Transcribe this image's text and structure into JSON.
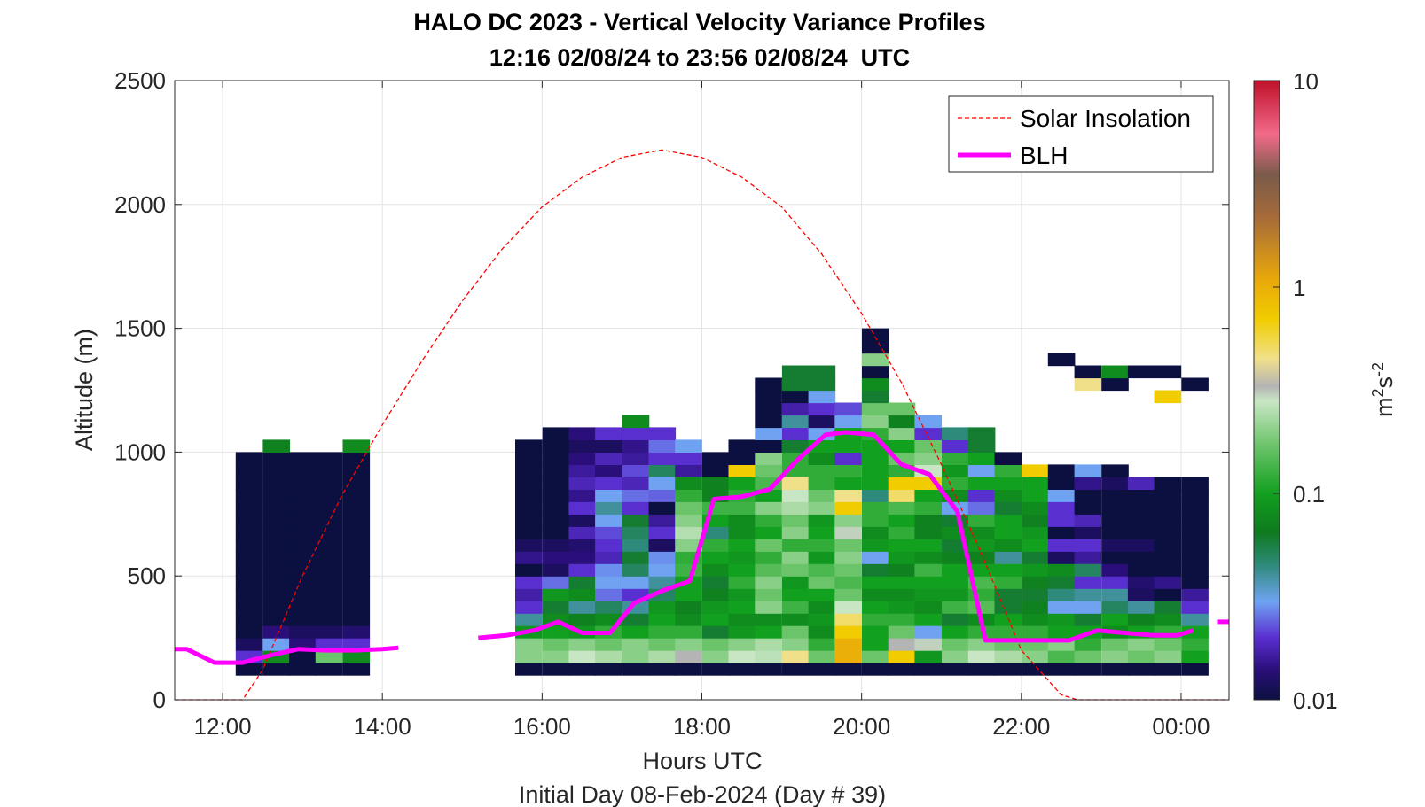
{
  "chart_data": {
    "type": "heatmap",
    "title": "HALO DC 2023 - Vertical Velocity Variance Profiles",
    "subtitle": "12:16 02/08/24 to 23:56 02/08/24  UTC",
    "xlabel": "Hours UTC",
    "ylabel": "Altitude (m)",
    "footer": "Initial Day 08-Feb-2024 (Day # 39)",
    "xlim_hours": [
      11.4,
      24.6
    ],
    "ylim": [
      0,
      2500
    ],
    "x_ticks": [
      {
        "value": 12,
        "label": "12:00"
      },
      {
        "value": 14,
        "label": "14:00"
      },
      {
        "value": 16,
        "label": "16:00"
      },
      {
        "value": 18,
        "label": "18:00"
      },
      {
        "value": 20,
        "label": "20:00"
      },
      {
        "value": 22,
        "label": "22:00"
      },
      {
        "value": 24,
        "label": "00:00"
      }
    ],
    "y_ticks": [
      {
        "value": 0,
        "label": "0"
      },
      {
        "value": 500,
        "label": "500"
      },
      {
        "value": 1000,
        "label": "1000"
      },
      {
        "value": 1500,
        "label": "1500"
      },
      {
        "value": 2000,
        "label": "2000"
      },
      {
        "value": 2500,
        "label": "2500"
      }
    ],
    "grid": true,
    "colorbar": {
      "scale": "log",
      "range": [
        0.01,
        10
      ],
      "ticks": [
        {
          "value": 0.01,
          "label": "0.01"
        },
        {
          "value": 0.1,
          "label": "0.1"
        },
        {
          "value": 1,
          "label": "1"
        },
        {
          "value": 10,
          "label": "10"
        }
      ],
      "unit_base": "m",
      "unit_sup1": "2",
      "unit_mid": "s",
      "unit_sup2": "-2",
      "stops": [
        {
          "value": 0.01,
          "color": "#0b1040"
        },
        {
          "value": 0.014,
          "color": "#2a0f7a"
        },
        {
          "value": 0.02,
          "color": "#5a2fd0"
        },
        {
          "value": 0.03,
          "color": "#6fa3f2"
        },
        {
          "value": 0.045,
          "color": "#2e8a7a"
        },
        {
          "value": 0.065,
          "color": "#0e7a1e"
        },
        {
          "value": 0.1,
          "color": "#12a01f"
        },
        {
          "value": 0.17,
          "color": "#6cc46a"
        },
        {
          "value": 0.28,
          "color": "#c8e6c4"
        },
        {
          "value": 0.33,
          "color": "#b4b4b4"
        },
        {
          "value": 0.45,
          "color": "#f1e08a"
        },
        {
          "value": 0.7,
          "color": "#f1cc00"
        },
        {
          "value": 1.1,
          "color": "#e8a70a"
        },
        {
          "value": 2.2,
          "color": "#a56a3a"
        },
        {
          "value": 3.5,
          "color": "#7a5b4a"
        },
        {
          "value": 5.5,
          "color": "#f26a8a"
        },
        {
          "value": 10,
          "color": "#c0102a"
        }
      ]
    },
    "legend": {
      "position": "top-right",
      "entries": [
        {
          "name": "Solar Insolation",
          "color": "#ff0000",
          "style": "dashed"
        },
        {
          "name": "BLH",
          "color": "#ff00ff",
          "style": "solid"
        }
      ]
    },
    "heatmap_bin_width_hours": 0.333,
    "heatmap_bin_height_m": 50,
    "variance_columns": [
      {
        "t": 12.33,
        "ybase": 100,
        "values": [
          0.01,
          0.02,
          0.012,
          0.01,
          0.01,
          0.01,
          0.01,
          0.01,
          0.01,
          0.01,
          0.01,
          0.01,
          0.01,
          0.01,
          0.01,
          0.01,
          0.01,
          0.01
        ]
      },
      {
        "t": 12.67,
        "ybase": 100,
        "values": [
          0.01,
          0.08,
          0.03,
          0.014,
          0.01,
          0.01,
          0.01,
          0.01,
          0.01,
          0.01,
          0.01,
          0.01,
          0.01,
          0.01,
          0.01,
          0.01,
          0.01,
          0.01,
          0.07
        ]
      },
      {
        "t": 13.0,
        "ybase": 100,
        "values": [
          0.01,
          0.01,
          0.014,
          0.012,
          0.01,
          0.01,
          0.01,
          0.01,
          0.01,
          0.01,
          0.01,
          0.01,
          0.01,
          0.01,
          0.01,
          0.01,
          0.01,
          0.01
        ]
      },
      {
        "t": 13.33,
        "ybase": 100,
        "values": [
          0.01,
          0.17,
          0.02,
          0.012,
          0.01,
          0.01,
          0.01,
          0.01,
          0.01,
          0.01,
          0.01,
          0.01,
          0.01,
          0.01,
          0.01,
          0.01,
          0.01,
          0.01
        ]
      },
      {
        "t": 13.67,
        "ybase": 100,
        "values": [
          0.01,
          0.08,
          0.02,
          0.013,
          0.01,
          0.01,
          0.01,
          0.01,
          0.01,
          0.01,
          0.01,
          0.01,
          0.01,
          0.01,
          0.01,
          0.01,
          0.01,
          0.01,
          0.08
        ]
      },
      {
        "t": 15.83,
        "ybase": 100,
        "values": [
          0.01,
          0.2,
          0.2,
          0.09,
          0.04,
          0.02,
          0.017,
          0.02,
          0.01,
          0.015,
          0.012,
          0.01,
          0.01,
          0.01,
          0.01,
          0.01,
          0.01,
          0.01,
          0.01
        ]
      },
      {
        "t": 16.17,
        "ybase": 100,
        "values": [
          0.01,
          0.2,
          0.17,
          0.1,
          0.08,
          0.06,
          0.09,
          0.025,
          0.012,
          0.014,
          0.012,
          0.01,
          0.01,
          0.01,
          0.01,
          0.01,
          0.01,
          0.01,
          0.01,
          0.01
        ]
      },
      {
        "t": 16.5,
        "ybase": 100,
        "values": [
          0.01,
          0.28,
          0.2,
          0.09,
          0.07,
          0.04,
          0.08,
          0.06,
          0.02,
          0.014,
          0.013,
          0.018,
          0.012,
          0.02,
          0.015,
          0.018,
          0.016,
          0.014,
          0.012,
          0.014
        ]
      },
      {
        "t": 16.83,
        "ybase": 100,
        "values": [
          0.01,
          0.24,
          0.17,
          0.12,
          0.08,
          0.05,
          0.025,
          0.03,
          0.028,
          0.018,
          0.02,
          0.022,
          0.03,
          0.04,
          0.03,
          0.02,
          0.014,
          0.018,
          0.012,
          0.02
        ]
      },
      {
        "t": 17.17,
        "ybase": 100,
        "values": [
          0.01,
          0.2,
          0.2,
          0.1,
          0.06,
          0.04,
          0.02,
          0.03,
          0.05,
          0.06,
          0.045,
          0.05,
          0.06,
          0.02,
          0.025,
          0.018,
          0.022,
          0.016,
          0.015,
          0.02,
          0.08
        ]
      },
      {
        "t": 17.5,
        "ybase": 100,
        "values": [
          0.01,
          0.24,
          0.17,
          0.12,
          0.1,
          0.09,
          0.05,
          0.04,
          0.03,
          0.028,
          0.012,
          0.02,
          0.016,
          0.01,
          0.024,
          0.03,
          0.05,
          0.02,
          0.025,
          0.02
        ]
      },
      {
        "t": 17.83,
        "ybase": 100,
        "values": [
          0.01,
          0.33,
          0.2,
          0.12,
          0.08,
          0.07,
          0.1,
          0.1,
          0.13,
          0.12,
          0.2,
          0.25,
          0.2,
          0.17,
          0.12,
          0.08,
          0.016,
          0.02,
          0.03
        ]
      },
      {
        "t": 18.17,
        "ybase": 100,
        "values": [
          0.01,
          0.2,
          0.17,
          0.06,
          0.1,
          0.09,
          0.07,
          0.06,
          0.08,
          0.1,
          0.12,
          0.045,
          0.1,
          0.13,
          0.07,
          0.07,
          0.01,
          0.01
        ]
      },
      {
        "t": 18.5,
        "ybase": 100,
        "values": [
          0.01,
          0.28,
          0.2,
          0.09,
          0.08,
          0.1,
          0.09,
          0.12,
          0.1,
          0.09,
          0.1,
          0.08,
          0.08,
          0.13,
          0.12,
          0.1,
          0.7,
          0.01,
          0.01
        ]
      },
      {
        "t": 18.83,
        "ybase": 100,
        "values": [
          0.01,
          0.26,
          0.24,
          0.1,
          0.08,
          0.2,
          0.17,
          0.2,
          0.15,
          0.12,
          0.17,
          0.1,
          0.12,
          0.2,
          0.1,
          0.14,
          0.17,
          0.2,
          0.01,
          0.03,
          0.01,
          0.01,
          0.01,
          0.01
        ]
      },
      {
        "t": 19.17,
        "ybase": 100,
        "values": [
          0.01,
          0.45,
          0.2,
          0.17,
          0.08,
          0.13,
          0.1,
          0.09,
          0.17,
          0.2,
          0.12,
          0.2,
          0.17,
          0.24,
          0.28,
          0.45,
          0.12,
          0.12,
          0.06,
          0.02,
          0.04,
          0.017,
          0.01,
          0.06,
          0.06
        ]
      },
      {
        "t": 19.5,
        "ybase": 100,
        "values": [
          0.01,
          0.17,
          0.12,
          0.08,
          0.09,
          0.08,
          0.1,
          0.17,
          0.14,
          0.09,
          0.12,
          0.1,
          0.09,
          0.2,
          0.17,
          0.12,
          0.12,
          0.08,
          0.1,
          0.03,
          0.012,
          0.02,
          0.03,
          0.06,
          0.06
        ]
      },
      {
        "t": 19.83,
        "ybase": 100,
        "values": [
          0.01,
          1.0,
          1.0,
          0.7,
          0.5,
          0.28,
          0.17,
          0.14,
          0.17,
          0.2,
          0.17,
          0.3,
          0.2,
          0.7,
          0.45,
          0.1,
          0.12,
          0.02,
          0.1,
          0.1,
          0.03,
          0.022
        ]
      },
      {
        "t": 20.17,
        "ybase": 100,
        "values": [
          0.01,
          0.17,
          0.1,
          0.1,
          0.12,
          0.1,
          0.08,
          0.1,
          0.06,
          0.03,
          0.09,
          0.08,
          0.12,
          0.12,
          0.045,
          0.1,
          0.1,
          0.1,
          0.1,
          0.12,
          0.2,
          0.17,
          0.06,
          0.08,
          0.01,
          0.2,
          0.01,
          0.01
        ]
      },
      {
        "t": 20.5,
        "ybase": 100,
        "values": [
          0.01,
          0.7,
          0.33,
          0.17,
          0.12,
          0.09,
          0.08,
          0.1,
          0.07,
          0.09,
          0.1,
          0.12,
          0.1,
          0.14,
          0.5,
          0.7,
          0.12,
          0.17,
          0.1,
          0.2,
          0.07,
          0.17
        ]
      },
      {
        "t": 20.83,
        "ybase": 100,
        "values": [
          0.01,
          0.09,
          0.3,
          0.03,
          0.1,
          0.08,
          0.09,
          0.1,
          0.13,
          0.08,
          0.1,
          0.07,
          0.07,
          0.12,
          0.1,
          0.7,
          0.28,
          0.2,
          0.17,
          0.02,
          0.03
        ]
      },
      {
        "t": 21.17,
        "ybase": 100,
        "values": [
          0.01,
          0.2,
          0.17,
          0.1,
          0.06,
          0.13,
          0.09,
          0.1,
          0.1,
          0.07,
          0.06,
          0.08,
          0.06,
          0.03,
          0.08,
          0.12,
          0.09,
          0.12,
          0.02,
          0.045
        ]
      },
      {
        "t": 21.5,
        "ybase": 100,
        "values": [
          0.01,
          0.28,
          0.2,
          0.12,
          0.08,
          0.15,
          0.12,
          0.14,
          0.1,
          0.07,
          0.09,
          0.08,
          0.12,
          0.025,
          0.02,
          0.1,
          0.03,
          0.1,
          0.06,
          0.06
        ]
      },
      {
        "t": 21.83,
        "ybase": 100,
        "values": [
          0.01,
          0.24,
          0.17,
          0.12,
          0.1,
          0.06,
          0.06,
          0.12,
          0.1,
          0.04,
          0.08,
          0.1,
          0.1,
          0.06,
          0.08,
          0.1,
          0.12,
          0.01
        ]
      },
      {
        "t": 22.17,
        "ybase": 100,
        "values": [
          0.01,
          0.2,
          0.17,
          0.12,
          0.08,
          0.07,
          0.06,
          0.07,
          0.09,
          0.06,
          0.1,
          0.09,
          0.07,
          0.08,
          0.1,
          0.1,
          0.7
        ]
      },
      {
        "t": 22.5,
        "ybase": 100,
        "values": [
          0.01,
          0.14,
          0.2,
          0.1,
          0.09,
          0.03,
          0.045,
          0.06,
          0.08,
          0.012,
          0.02,
          0.01,
          0.02,
          0.02,
          0.03,
          0.01,
          0.01,
          0.0,
          0.0,
          0.0,
          0.0,
          0.0,
          0.0,
          0.0,
          0.0,
          0.01
        ]
      },
      {
        "t": 22.83,
        "ybase": 100,
        "values": [
          0.01,
          0.17,
          0.12,
          0.1,
          0.06,
          0.03,
          0.04,
          0.02,
          0.05,
          0.016,
          0.02,
          0.012,
          0.018,
          0.01,
          0.01,
          0.015,
          0.03,
          0.0,
          0.0,
          0.0,
          0.0,
          0.0,
          0.0,
          0.45,
          0.01
        ]
      },
      {
        "t": 23.17,
        "ybase": 100,
        "values": [
          0.01,
          0.2,
          0.17,
          0.08,
          0.1,
          0.05,
          0.04,
          0.02,
          0.014,
          0.01,
          0.012,
          0.01,
          0.01,
          0.01,
          0.01,
          0.012,
          0.01,
          0.0,
          0.0,
          0.0,
          0.0,
          0.0,
          0.0,
          0.01,
          0.08
        ]
      },
      {
        "t": 23.5,
        "ybase": 100,
        "values": [
          0.01,
          0.17,
          0.2,
          0.1,
          0.07,
          0.04,
          0.012,
          0.013,
          0.01,
          0.01,
          0.012,
          0.01,
          0.01,
          0.01,
          0.01,
          0.018,
          0.0,
          0.0,
          0.0,
          0.0,
          0.0,
          0.0,
          0.0,
          0.0,
          0.01
        ]
      },
      {
        "t": 23.83,
        "ybase": 100,
        "values": [
          0.01,
          0.2,
          0.17,
          0.12,
          0.08,
          0.06,
          0.01,
          0.015,
          0.01,
          0.01,
          0.01,
          0.01,
          0.01,
          0.01,
          0.01,
          0.01,
          0.0,
          0.0,
          0.0,
          0.0,
          0.0,
          0.0,
          0.7,
          0.0,
          0.01
        ]
      },
      {
        "t": 24.17,
        "ybase": 100,
        "values": [
          0.01,
          0.1,
          0.12,
          0.1,
          0.04,
          0.02,
          0.016,
          0.01,
          0.01,
          0.01,
          0.01,
          0.01,
          0.01,
          0.01,
          0.01,
          0.01,
          0.0,
          0.0,
          0.0,
          0.0,
          0.0,
          0.0,
          0.0,
          0.01
        ]
      }
    ],
    "blh": {
      "name": "BLH",
      "segments": [
        [
          [
            11.4,
            205
          ],
          [
            11.55,
            205
          ],
          [
            11.9,
            150
          ],
          [
            12.25,
            150
          ],
          [
            12.6,
            180
          ],
          [
            12.95,
            205
          ],
          [
            13.3,
            200
          ],
          [
            13.65,
            200
          ],
          [
            14.0,
            205
          ],
          [
            14.2,
            210
          ]
        ],
        [
          [
            15.2,
            250
          ],
          [
            15.55,
            260
          ],
          [
            15.9,
            280
          ],
          [
            16.2,
            315
          ],
          [
            16.5,
            270
          ],
          [
            16.85,
            270
          ],
          [
            17.15,
            390
          ],
          [
            17.5,
            440
          ],
          [
            17.85,
            480
          ],
          [
            18.15,
            810
          ],
          [
            18.5,
            820
          ],
          [
            18.85,
            850
          ],
          [
            19.2,
            970
          ],
          [
            19.55,
            1070
          ],
          [
            19.8,
            1080
          ],
          [
            20.15,
            1070
          ],
          [
            20.5,
            950
          ],
          [
            20.85,
            910
          ],
          [
            21.2,
            760
          ],
          [
            21.55,
            240
          ],
          [
            21.9,
            240
          ],
          [
            22.25,
            240
          ],
          [
            22.6,
            240
          ],
          [
            22.95,
            280
          ],
          [
            23.3,
            270
          ],
          [
            23.65,
            260
          ],
          [
            23.95,
            260
          ],
          [
            24.15,
            280
          ]
        ],
        [
          [
            24.45,
            315
          ],
          [
            24.6,
            315
          ]
        ]
      ]
    },
    "solar": {
      "name": "Solar Insolation",
      "x": [
        11.4,
        12.25,
        12.5,
        13.0,
        13.5,
        14.0,
        14.5,
        15.0,
        15.5,
        16.0,
        16.5,
        17.0,
        17.5,
        18.0,
        18.5,
        19.0,
        19.5,
        20.0,
        20.5,
        21.0,
        21.5,
        22.0,
        22.5,
        22.7,
        24.6
      ],
      "y": [
        0,
        0,
        120,
        500,
        830,
        1110,
        1370,
        1610,
        1820,
        1990,
        2110,
        2190,
        2220,
        2190,
        2110,
        1990,
        1800,
        1560,
        1280,
        950,
        590,
        200,
        20,
        0,
        0
      ]
    }
  }
}
